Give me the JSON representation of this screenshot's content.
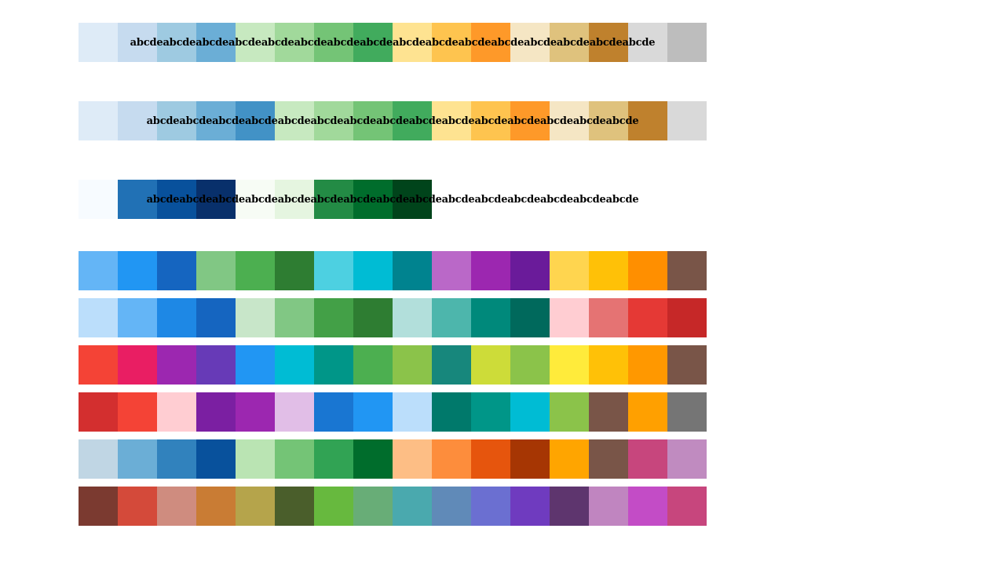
{
  "labeled_rows": [
    {
      "text": "abcdeabcdeabcdeabcdeabcdeabcdeabcdeabcdeabcdeabcdeabcdeabcdeabcdeabcdeabcdeabcde",
      "colors": [
        "#deebf7",
        "#c6dbef",
        "#9ecae1",
        "#6baed6",
        "#c7e9c0",
        "#a1d99b",
        "#74c476",
        "#41ab5d",
        "#fee391",
        "#fec44f",
        "#fe9929",
        "#f5e6c4",
        "#dfc27d",
        "#bf812d",
        "#d9d9d9",
        "#bdbdbd"
      ]
    },
    {
      "text": "abcdeabcdeabcdeabcdeabcdeabcdeabcdeabcdeabcdeabcdeabcdeabcdeabcdeabcdeabcde",
      "colors": [
        "#deebf7",
        "#c6dbef",
        "#9ecae1",
        "#6baed6",
        "#4292c6",
        "#c7e9c0",
        "#a1d99b",
        "#74c476",
        "#41ab5d",
        "#fee391",
        "#fec44f",
        "#fe9929",
        "#f5e6c4",
        "#dfc27d",
        "#bf812d",
        "#d9d9d9"
      ]
    },
    {
      "text": "abcdeabcdeabcdeabcdeabcdeabcdeabcdeabcdeabcdeabcdeabcdeabcdeabcdeabcdeabcde",
      "colors": [
        "#f7fbff",
        "#2171b5",
        "#08519c",
        "#08306b",
        "#f7fcf5",
        "#e5f5e0",
        "#238b45",
        "#006d2c",
        "#00441b"
      ]
    }
  ],
  "plain_rows": [
    [
      "#64b5f6",
      "#2196f3",
      "#1565c0",
      "#81c784",
      "#4caf50",
      "#2e7d32",
      "#4dd0e1",
      "#00bcd4",
      "#00838f",
      "#ba68c8",
      "#9c27b0",
      "#6a1b9a",
      "#ffd54f",
      "#ffc107",
      "#ff8f00",
      "#795548"
    ],
    [
      "#bbdefb",
      "#64b5f6",
      "#1e88e5",
      "#1565c0",
      "#c8e6c9",
      "#81c784",
      "#43a047",
      "#2e7d32",
      "#b2dfdb",
      "#4db6ac",
      "#00897b",
      "#00695c",
      "#ffcdd2",
      "#e57373",
      "#e53935",
      "#c62828"
    ],
    [
      "#f44336",
      "#e91e63",
      "#9c27b0",
      "#673ab7",
      "#2196f3",
      "#00bcd4",
      "#009688",
      "#4caf50",
      "#8bc34a",
      "#17877c",
      "#cddc39",
      "#8bc34a",
      "#ffeb3b",
      "#ffc107",
      "#ff9800",
      "#795548"
    ],
    [
      "#d32f2f",
      "#f44336",
      "#ffcdd2",
      "#7b1fa2",
      "#9c27b0",
      "#e1bee7",
      "#1976d2",
      "#2196f3",
      "#bbdefb",
      "#00796b",
      "#009688",
      "#00bcd4",
      "#8bc34a",
      "#795548",
      "#ffa000",
      "#757575"
    ],
    [
      "#c0d6e4",
      "#6baed6",
      "#3182bd",
      "#08519c",
      "#bae4b3",
      "#74c476",
      "#31a354",
      "#006d2c",
      "#fdbe85",
      "#fd8d3c",
      "#e6550d",
      "#a63603",
      "#ffa500",
      "#795548",
      "#c7467d",
      "#c08bc0"
    ],
    [
      "#7b3a30",
      "#d44a3a",
      "#cf8c7f",
      "#c97c34",
      "#b5a44b",
      "#4a5e2b",
      "#67b93e",
      "#68ad77",
      "#4aa9ae",
      "#608ab8",
      "#6b6fd1",
      "#6f3bbf",
      "#5e356e",
      "#c085c0",
      "#c34cc6",
      "#c7467d"
    ]
  ]
}
